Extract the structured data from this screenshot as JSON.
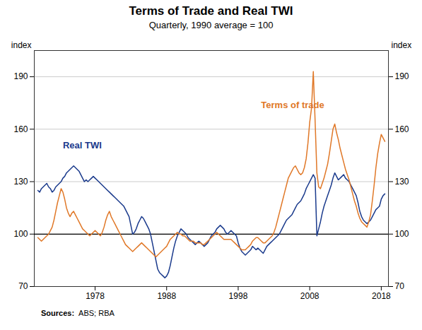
{
  "chart_data": {
    "type": "line",
    "title": "Terms of Trade and Real TWI",
    "subtitle": "Quarterly, 1990 average = 100",
    "ylabel": "index",
    "y2label": "index",
    "source_label": "Sources:",
    "source_text": "ABS; RBA",
    "xlim": [
      1969.5,
      2019.0
    ],
    "xticks": [
      1978,
      1988,
      1998,
      2008,
      2018
    ],
    "ylim": [
      70,
      205
    ],
    "yticks": [
      70,
      100,
      130,
      160,
      190
    ],
    "y2lim": [
      70,
      205
    ],
    "y2ticks": [
      70,
      100,
      130,
      160,
      190
    ],
    "grid": true,
    "hline": 100,
    "x": [
      1970.0,
      1970.25,
      1970.5,
      1970.75,
      1971.0,
      1971.25,
      1971.5,
      1971.75,
      1972.0,
      1972.25,
      1972.5,
      1972.75,
      1973.0,
      1973.25,
      1973.5,
      1973.75,
      1974.0,
      1974.25,
      1974.5,
      1974.75,
      1975.0,
      1975.25,
      1975.5,
      1975.75,
      1976.0,
      1976.25,
      1976.5,
      1976.75,
      1977.0,
      1977.25,
      1977.5,
      1977.75,
      1978.0,
      1978.25,
      1978.5,
      1978.75,
      1979.0,
      1979.25,
      1979.5,
      1979.75,
      1980.0,
      1980.25,
      1980.5,
      1980.75,
      1981.0,
      1981.25,
      1981.5,
      1981.75,
      1982.0,
      1982.25,
      1982.5,
      1982.75,
      1983.0,
      1983.25,
      1983.5,
      1983.75,
      1984.0,
      1984.25,
      1984.5,
      1984.75,
      1985.0,
      1985.25,
      1985.5,
      1985.75,
      1986.0,
      1986.25,
      1986.5,
      1986.75,
      1987.0,
      1987.25,
      1987.5,
      1987.75,
      1988.0,
      1988.25,
      1988.5,
      1988.75,
      1989.0,
      1989.25,
      1989.5,
      1989.75,
      1990.0,
      1990.25,
      1990.5,
      1990.75,
      1991.0,
      1991.25,
      1991.5,
      1991.75,
      1992.0,
      1992.25,
      1992.5,
      1992.75,
      1993.0,
      1993.25,
      1993.5,
      1993.75,
      1994.0,
      1994.25,
      1994.5,
      1994.75,
      1995.0,
      1995.25,
      1995.5,
      1995.75,
      1996.0,
      1996.25,
      1996.5,
      1996.75,
      1997.0,
      1997.25,
      1997.5,
      1997.75,
      1998.0,
      1998.25,
      1998.5,
      1998.75,
      1999.0,
      1999.25,
      1999.5,
      1999.75,
      2000.0,
      2000.25,
      2000.5,
      2000.75,
      2001.0,
      2001.25,
      2001.5,
      2001.75,
      2002.0,
      2002.25,
      2002.5,
      2002.75,
      2003.0,
      2003.25,
      2003.5,
      2003.75,
      2004.0,
      2004.25,
      2004.5,
      2004.75,
      2005.0,
      2005.25,
      2005.5,
      2005.75,
      2006.0,
      2006.25,
      2006.5,
      2006.75,
      2007.0,
      2007.25,
      2007.5,
      2007.75,
      2008.0,
      2008.25,
      2008.5,
      2008.75,
      2009.0,
      2009.25,
      2009.5,
      2009.75,
      2010.0,
      2010.25,
      2010.5,
      2010.75,
      2011.0,
      2011.25,
      2011.5,
      2011.75,
      2012.0,
      2012.25,
      2012.5,
      2012.75,
      2013.0,
      2013.25,
      2013.5,
      2013.75,
      2014.0,
      2014.25,
      2014.5,
      2014.75,
      2015.0,
      2015.25,
      2015.5,
      2015.75,
      2016.0,
      2016.25,
      2016.5,
      2016.75,
      2017.0,
      2017.25,
      2017.5,
      2017.75,
      2018.0,
      2018.25,
      2018.5
    ],
    "series": [
      {
        "name": "Real TWI",
        "color": "#1a3a8c",
        "values": [
          125,
          124,
          126,
          127,
          128,
          129,
          127,
          126,
          124,
          125,
          127,
          128,
          129,
          130,
          132,
          133,
          135,
          136,
          137,
          138,
          139,
          138,
          137,
          136,
          134,
          132,
          130,
          131,
          130,
          131,
          132,
          133,
          132,
          131,
          130,
          129,
          128,
          127,
          126,
          125,
          124,
          123,
          122,
          121,
          120,
          119,
          118,
          117,
          116,
          114,
          112,
          110,
          105,
          100,
          101,
          103,
          106,
          108,
          110,
          109,
          107,
          105,
          103,
          100,
          95,
          90,
          85,
          80,
          78,
          77,
          76,
          75,
          76,
          78,
          82,
          87,
          92,
          96,
          99,
          101,
          103,
          102,
          101,
          100,
          98,
          97,
          96,
          95,
          94,
          95,
          96,
          95,
          94,
          93,
          94,
          95,
          97,
          99,
          100,
          101,
          103,
          104,
          105,
          104,
          103,
          101,
          100,
          101,
          102,
          101,
          100,
          99,
          95,
          92,
          90,
          89,
          88,
          89,
          90,
          91,
          93,
          92,
          91,
          92,
          91,
          90,
          89,
          91,
          93,
          94,
          95,
          96,
          97,
          98,
          99,
          100,
          102,
          104,
          106,
          108,
          109,
          110,
          111,
          113,
          115,
          117,
          118,
          119,
          121,
          123,
          126,
          128,
          130,
          132,
          134,
          132,
          99,
          103,
          107,
          112,
          116,
          119,
          122,
          125,
          128,
          132,
          135,
          133,
          131,
          132,
          133,
          134,
          132,
          131,
          130,
          128,
          126,
          124,
          122,
          118,
          113,
          110,
          108,
          107,
          106,
          107,
          108,
          110,
          112,
          114,
          115,
          116,
          120,
          122,
          123
        ]
      },
      {
        "name": "Terms of trade",
        "color": "#e07828",
        "values": [
          98,
          97,
          96,
          97,
          98,
          99,
          100,
          102,
          104,
          108,
          113,
          118,
          122,
          126,
          124,
          120,
          115,
          112,
          110,
          112,
          113,
          111,
          109,
          107,
          105,
          103,
          102,
          101,
          100,
          99,
          100,
          101,
          102,
          101,
          100,
          99,
          101,
          104,
          108,
          111,
          113,
          110,
          108,
          106,
          104,
          102,
          100,
          98,
          96,
          94,
          93,
          92,
          91,
          90,
          91,
          92,
          93,
          94,
          95,
          94,
          93,
          92,
          91,
          90,
          89,
          88,
          87,
          88,
          89,
          90,
          91,
          92,
          93,
          95,
          97,
          98,
          99,
          100,
          101,
          100,
          100,
          99,
          99,
          98,
          97,
          96,
          96,
          96,
          95,
          95,
          95,
          95,
          94,
          94,
          95,
          96,
          97,
          98,
          99,
          100,
          101,
          100,
          99,
          98,
          97,
          97,
          97,
          97,
          97,
          96,
          95,
          94,
          93,
          92,
          91,
          91,
          91,
          92,
          93,
          94,
          96,
          97,
          98,
          98,
          97,
          96,
          95,
          95,
          96,
          97,
          98,
          99,
          101,
          104,
          108,
          112,
          116,
          120,
          124,
          128,
          132,
          134,
          136,
          138,
          139,
          137,
          135,
          134,
          135,
          138,
          143,
          152,
          164,
          172,
          193,
          165,
          135,
          127,
          126,
          129,
          132,
          136,
          140,
          146,
          153,
          160,
          163,
          158,
          154,
          149,
          145,
          141,
          137,
          134,
          131,
          127,
          123,
          119,
          116,
          112,
          109,
          107,
          106,
          105,
          104,
          107,
          111,
          119,
          128,
          138,
          146,
          152,
          157,
          155,
          153
        ]
      }
    ],
    "annotations": [
      {
        "text": "Real TWI",
        "x": 1973.5,
        "y": 149,
        "color": "#1a3a8c"
      },
      {
        "text": "Terms of trade",
        "x": 2001.2,
        "y": 172,
        "color": "#e07828"
      }
    ]
  }
}
